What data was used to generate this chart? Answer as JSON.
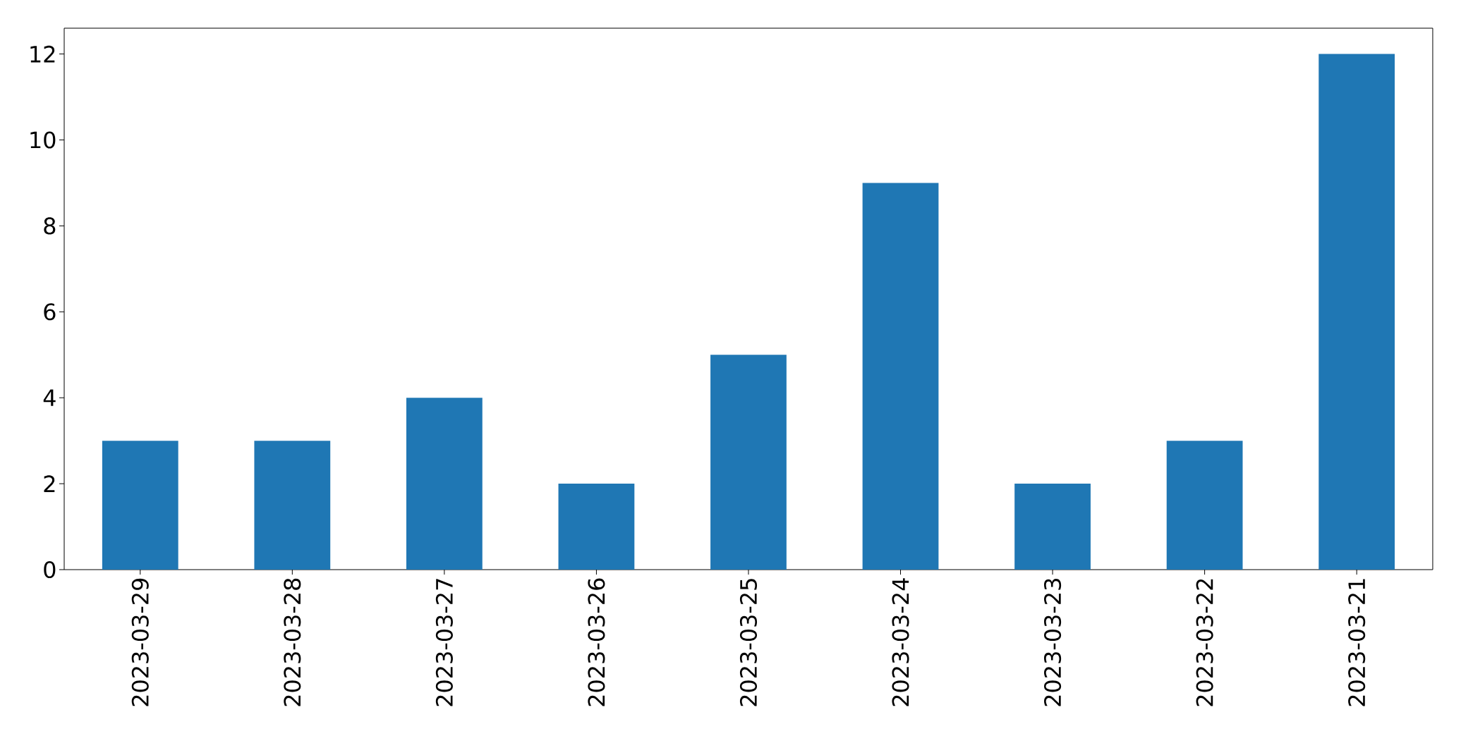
{
  "chart_data": {
    "type": "bar",
    "categories": [
      "2023-03-29",
      "2023-03-28",
      "2023-03-27",
      "2023-03-26",
      "2023-03-25",
      "2023-03-24",
      "2023-03-23",
      "2023-03-22",
      "2023-03-21"
    ],
    "values": [
      3,
      3,
      4,
      2,
      5,
      9,
      2,
      3,
      12
    ],
    "color": "#1f77b4",
    "ylim": [
      0,
      12.6
    ],
    "yticks": [
      0,
      2,
      4,
      6,
      8,
      10,
      12
    ]
  }
}
